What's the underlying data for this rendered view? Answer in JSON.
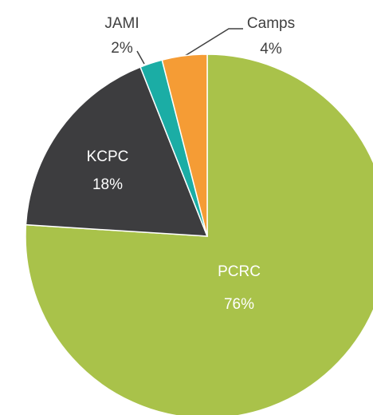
{
  "chart_data": {
    "type": "pie",
    "categories": [
      "PCRC",
      "KCPC",
      "JAMI",
      "Camps"
    ],
    "values": [
      76,
      18,
      2,
      4
    ],
    "value_labels": [
      "76%",
      "18%",
      "2%",
      "4%"
    ],
    "colors": [
      "#a9c24a",
      "#3d3d3f",
      "#1bada5",
      "#f59c35"
    ]
  }
}
